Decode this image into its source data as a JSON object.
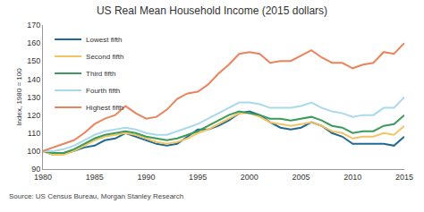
{
  "chart_data": {
    "type": "line",
    "title": "US Real Mean Household Income (2015 dollars)",
    "ylabel": "Index, 1980 = 100",
    "annotations": [
      "Source: US Census Bureau, Morgan Stanley Research"
    ],
    "x": [
      1980,
      1981,
      1982,
      1983,
      1984,
      1985,
      1986,
      1987,
      1988,
      1989,
      1990,
      1991,
      1992,
      1993,
      1994,
      1995,
      1996,
      1997,
      1998,
      1999,
      2000,
      2001,
      2002,
      2003,
      2004,
      2005,
      2006,
      2007,
      2008,
      2009,
      2010,
      2011,
      2012,
      2013,
      2014,
      2015
    ],
    "series": [
      {
        "name": "Lowest fifth",
        "color": "#1f6a94",
        "values": [
          100,
          98,
          99,
          100,
          102,
          103,
          106,
          107,
          110,
          108,
          106,
          104,
          103,
          104,
          108,
          112,
          112,
          114,
          117,
          121,
          122,
          120,
          116,
          113,
          112,
          113,
          116,
          114,
          110,
          108,
          104,
          104,
          104,
          104,
          103,
          108
        ]
      },
      {
        "name": "Second fifth",
        "color": "#f2c462",
        "values": [
          100,
          98,
          98,
          100,
          103,
          106,
          108,
          109,
          110,
          109,
          107,
          105,
          104,
          105,
          107,
          110,
          112,
          115,
          118,
          121,
          121,
          119,
          116,
          115,
          114,
          115,
          116,
          114,
          111,
          110,
          107,
          108,
          108,
          110,
          109,
          114
        ]
      },
      {
        "name": "Third fifth",
        "color": "#3b9a5c",
        "values": [
          100,
          99,
          99,
          101,
          104,
          107,
          109,
          110,
          111,
          110,
          108,
          107,
          106,
          107,
          109,
          111,
          114,
          117,
          120,
          122,
          121,
          120,
          118,
          118,
          117,
          118,
          119,
          117,
          114,
          113,
          110,
          111,
          111,
          114,
          115,
          120
        ]
      },
      {
        "name": "Fourth fifth",
        "color": "#a9d9ea",
        "values": [
          100,
          100,
          101,
          103,
          106,
          109,
          111,
          112,
          113,
          112,
          110,
          109,
          109,
          111,
          113,
          115,
          118,
          121,
          124,
          127,
          127,
          126,
          124,
          124,
          124,
          125,
          127,
          124,
          122,
          121,
          119,
          120,
          120,
          124,
          124,
          130
        ]
      },
      {
        "name": "Highest fifth",
        "color": "#e9845c",
        "values": [
          100,
          102,
          104,
          106,
          110,
          115,
          118,
          120,
          125,
          121,
          118,
          119,
          123,
          129,
          132,
          133,
          137,
          143,
          148,
          154,
          155,
          154,
          149,
          150,
          150,
          153,
          156,
          152,
          149,
          149,
          146,
          148,
          149,
          155,
          154,
          160
        ]
      }
    ],
    "xlim": [
      1980,
      2015
    ],
    "xticks": [
      1980,
      1985,
      1990,
      1995,
      2000,
      2005,
      2010,
      2015
    ],
    "ylim": [
      90,
      170
    ],
    "yticks": [
      90,
      100,
      110,
      120,
      130,
      140,
      150,
      160,
      170
    ],
    "grid": false,
    "legend": "top-left"
  }
}
